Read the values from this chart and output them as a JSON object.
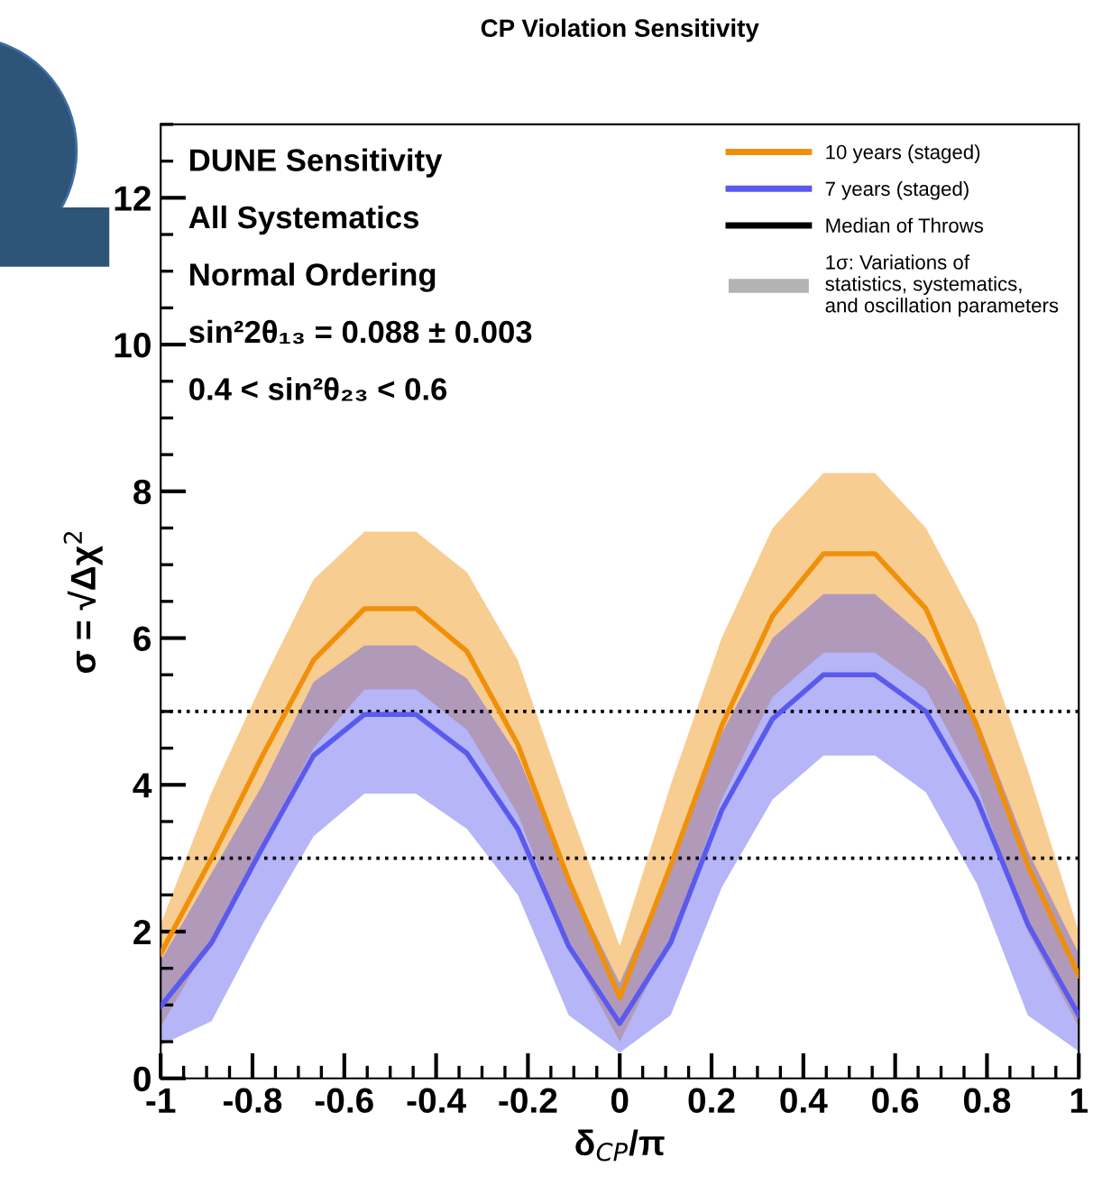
{
  "chart_data": {
    "type": "line",
    "title": "CP Violation Sensitivity",
    "xlabel": "δ$_{CP}$/π",
    "ylabel": "σ = √Δχ$^{2}$",
    "x": [
      -1,
      -0.889,
      -0.778,
      -0.667,
      -0.556,
      -0.444,
      -0.333,
      -0.222,
      -0.111,
      0,
      0.111,
      0.222,
      0.333,
      0.444,
      0.556,
      0.667,
      0.778,
      0.889,
      1
    ],
    "series": [
      {
        "name": "10 years (staged)",
        "color": "#f0900a",
        "values": [
          1.7,
          3.0,
          4.4,
          5.7,
          6.4,
          6.4,
          5.82,
          4.55,
          2.7,
          1.1,
          2.9,
          4.8,
          6.3,
          7.15,
          7.15,
          6.4,
          4.8,
          2.9,
          1.4
        ],
        "lower": [
          0.7,
          1.9,
          3.2,
          4.5,
          5.3,
          5.3,
          4.75,
          3.6,
          1.8,
          0.5,
          1.9,
          3.8,
          5.2,
          5.8,
          5.8,
          5.3,
          4.0,
          2.0,
          0.7
        ],
        "upper": [
          2.1,
          3.9,
          5.4,
          6.8,
          7.45,
          7.45,
          6.9,
          5.7,
          3.7,
          1.8,
          4.0,
          6.0,
          7.5,
          8.25,
          8.25,
          7.5,
          6.2,
          4.2,
          2.0
        ]
      },
      {
        "name": "7 years (staged)",
        "color": "#5a5aee",
        "values": [
          0.98,
          1.85,
          3.15,
          4.4,
          4.96,
          4.96,
          4.43,
          3.4,
          1.8,
          0.75,
          1.85,
          3.65,
          4.9,
          5.5,
          5.5,
          5.0,
          3.8,
          2.1,
          0.86
        ],
        "lower": [
          0.45,
          0.78,
          2.1,
          3.3,
          3.88,
          3.88,
          3.4,
          2.5,
          0.86,
          0.35,
          0.86,
          2.6,
          3.8,
          4.4,
          4.4,
          3.9,
          2.65,
          0.86,
          0.37
        ],
        "upper": [
          1.6,
          2.8,
          4.0,
          5.4,
          5.9,
          5.9,
          5.45,
          4.4,
          2.7,
          1.3,
          2.9,
          4.7,
          6.0,
          6.6,
          6.6,
          6.0,
          4.9,
          3.1,
          1.7
        ]
      },
      {
        "name": "Median of Throws",
        "color": "#000000",
        "values": [
          null,
          null,
          null,
          null,
          null,
          null,
          null,
          null,
          null,
          null,
          null,
          null,
          null,
          null,
          null,
          null,
          null,
          null,
          null
        ]
      },
      {
        "name": "1σ: Variations of\nstatistics, systematics,\nand oscillation parameters",
        "type": "area",
        "color": "#b3b3b3",
        "values": [
          null,
          null,
          null,
          null,
          null,
          null,
          null,
          null,
          null,
          null,
          null,
          null,
          null,
          null,
          null,
          null,
          null,
          null,
          null
        ]
      }
    ],
    "ref_lines": [
      {
        "axis": "y",
        "value": 5,
        "color": "#000000",
        "line_style": "dotted"
      },
      {
        "axis": "y",
        "value": 3,
        "color": "#000000",
        "line_style": "dotted"
      }
    ],
    "annotations": [
      "DUNE Sensitivity",
      "All Systematics",
      "Normal Ordering",
      "sin²2θ₁₃ = 0.088 ± 0.003",
      "0.4 < sin²θ₂₃ < 0.6"
    ],
    "xlim": [
      -1,
      1
    ],
    "ylim": [
      0,
      13
    ],
    "xticks": [
      -1,
      -0.8,
      -0.6,
      -0.4,
      -0.2,
      0,
      0.2,
      0.4,
      0.6,
      0.8,
      1
    ],
    "yticks": [
      0,
      2,
      4,
      6,
      8,
      10,
      12
    ],
    "grid": false,
    "legend": "top right",
    "marker": "none",
    "line_style": "solid"
  }
}
